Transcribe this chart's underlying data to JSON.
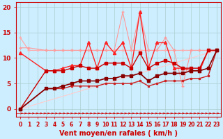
{
  "xlabel": "Vent moyen/en rafales ( km/h )",
  "background_color": "#cceeff",
  "grid_color": "#aacccc",
  "xlim": [
    -0.5,
    23.5
  ],
  "ylim": [
    -1.5,
    21
  ],
  "yticks": [
    0,
    5,
    10,
    15,
    20
  ],
  "xticks": [
    0,
    1,
    2,
    3,
    4,
    5,
    6,
    7,
    8,
    9,
    10,
    11,
    12,
    13,
    14,
    15,
    16,
    17,
    18,
    19,
    20,
    21,
    22,
    23
  ],
  "series": [
    {
      "x": [
        0,
        1,
        2,
        3,
        4,
        5,
        6,
        7,
        8,
        9,
        10,
        11,
        12,
        13,
        14,
        15,
        16,
        17,
        18,
        19,
        20,
        21,
        22,
        23
      ],
      "y": [
        14,
        11.5,
        11.5,
        11.5,
        11.5,
        11.5,
        11.5,
        11.5,
        11.5,
        11.5,
        11.5,
        11.5,
        11.5,
        11.5,
        11.5,
        11.5,
        11.5,
        11.5,
        11.5,
        11.5,
        11.5,
        11.5,
        11.5,
        11.5
      ],
      "color": "#ffaaaa",
      "linewidth": 0.9,
      "marker": "+",
      "markersize": 3,
      "linestyle": "-",
      "zorder": 2
    },
    {
      "x": [
        0,
        1,
        3,
        4,
        5,
        6,
        7,
        8,
        9,
        10,
        11,
        12,
        13,
        14,
        15,
        16,
        17,
        18,
        19,
        20,
        21,
        22,
        23
      ],
      "y": [
        12,
        12,
        11.5,
        11.5,
        11.5,
        11.5,
        11.5,
        11.5,
        11.5,
        11.5,
        11.5,
        19,
        11.5,
        19,
        11.5,
        11.5,
        14,
        11.5,
        4.5,
        11.5,
        11.5,
        11.5,
        11.5
      ],
      "color": "#ff9999",
      "linewidth": 0.8,
      "marker": "+",
      "markersize": 3.5,
      "linestyle": "-",
      "zorder": 3
    },
    {
      "x": [
        0,
        3,
        4,
        5,
        6,
        7,
        8,
        9,
        10,
        11,
        12,
        13,
        14,
        15,
        16,
        17,
        18,
        19,
        20,
        21,
        22,
        23
      ],
      "y": [
        11,
        7.5,
        7.5,
        8,
        8.5,
        8.5,
        13,
        8,
        13,
        11,
        13,
        8,
        19,
        8,
        13,
        13,
        8,
        8,
        7.5,
        7.5,
        11.5,
        11.5
      ],
      "color": "#ff2222",
      "linewidth": 1.0,
      "marker": "^",
      "markersize": 3,
      "linestyle": "-",
      "zorder": 4
    },
    {
      "x": [
        0,
        3,
        4,
        5,
        6,
        7,
        8,
        9,
        10,
        11,
        12,
        13,
        14,
        15,
        16,
        17,
        18,
        19,
        20,
        21,
        22,
        23
      ],
      "y": [
        0,
        7.5,
        7.5,
        7.5,
        8,
        8.5,
        8,
        8,
        9,
        9,
        9,
        8,
        11,
        8,
        9,
        9.5,
        9,
        8,
        8,
        8,
        11.5,
        11.5
      ],
      "color": "#cc0000",
      "linewidth": 1.0,
      "marker": "s",
      "markersize": 2.5,
      "linestyle": "-",
      "zorder": 5
    },
    {
      "x": [
        0,
        3,
        4,
        5,
        6,
        7,
        8,
        9,
        10,
        11,
        12,
        13,
        14,
        15,
        16,
        17,
        18,
        19,
        20,
        21,
        22,
        23
      ],
      "y": [
        0,
        4,
        4,
        4.5,
        5,
        5.5,
        5.5,
        5.5,
        6,
        6,
        6.5,
        6.5,
        7,
        5.5,
        6.5,
        7,
        7,
        7,
        7.5,
        7.5,
        8,
        11.5
      ],
      "color": "#880000",
      "linewidth": 1.2,
      "marker": "s",
      "markersize": 2.5,
      "linestyle": "-",
      "zorder": 6
    },
    {
      "x": [
        0,
        3,
        4,
        5,
        6,
        7,
        8,
        9,
        10,
        11,
        12,
        13,
        14,
        15,
        16,
        17,
        18,
        19,
        20,
        21,
        22,
        23
      ],
      "y": [
        0,
        4,
        4,
        4,
        4.5,
        4.5,
        4.5,
        4.5,
        5,
        5,
        5,
        5,
        5.5,
        4.5,
        5,
        5.5,
        5.5,
        5.5,
        6,
        6,
        6.5,
        11.5
      ],
      "color": "#cc2222",
      "linewidth": 1.0,
      "marker": "s",
      "markersize": 2,
      "linestyle": "-",
      "zorder": 5
    },
    {
      "x": [
        0,
        23
      ],
      "y": [
        0,
        11.5
      ],
      "color": "#ffcccc",
      "linewidth": 0.8,
      "marker": "None",
      "markersize": 0,
      "linestyle": "-",
      "zorder": 1
    }
  ],
  "xlabel_fontsize": 7,
  "tick_fontsize": 5.5,
  "ytick_fontsize": 6.5
}
